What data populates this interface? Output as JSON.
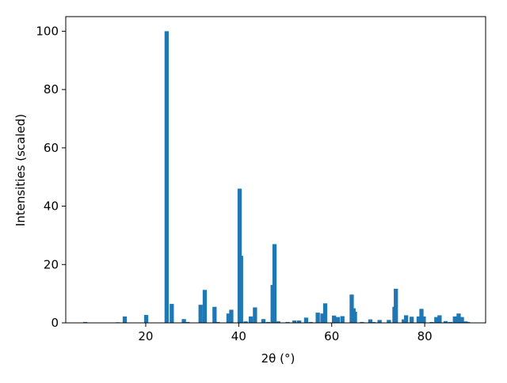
{
  "chart_data": {
    "type": "bar",
    "xlabel": "2θ (°)",
    "ylabel": "Intensities (scaled)",
    "color": "#1f77b4",
    "x": [
      7.0,
      14.0,
      15.5,
      20.1,
      24.5,
      25.6,
      28.2,
      29.0,
      31.8,
      32.7,
      34.8,
      35.5,
      37.8,
      38.4,
      40.2,
      40.5,
      41.5,
      42.6,
      43.5,
      45.3,
      46.3,
      47.3,
      47.7,
      48.5,
      50.5,
      52.0,
      53.0,
      54.5,
      55.5,
      57.0,
      58.0,
      58.6,
      60.5,
      61.3,
      62.3,
      64.3,
      64.7,
      65.0,
      66.5,
      68.3,
      69.0,
      70.3,
      72.3,
      73.5,
      73.8,
      75.5,
      76.0,
      77.2,
      78.7,
      79.3,
      79.8,
      81.5,
      82.5,
      83.2,
      84.5,
      85.5,
      86.5,
      87.3,
      88.0,
      88.8,
      89.3
    ],
    "values": [
      0.3,
      0.2,
      2.2,
      2.7,
      100,
      6.5,
      1.3,
      0.3,
      6.2,
      11.3,
      5.5,
      0.3,
      3.2,
      4.5,
      46,
      23,
      0.5,
      2.2,
      5.3,
      1.3,
      0.3,
      13,
      27,
      0.5,
      0.3,
      0.8,
      0.8,
      1.8,
      0.3,
      3.5,
      3.2,
      6.7,
      2.5,
      2.0,
      2.3,
      9.7,
      5,
      3.8,
      0.3,
      1.2,
      0.3,
      1.0,
      1.0,
      5.5,
      11.7,
      1.2,
      2.6,
      2.1,
      2.2,
      4.8,
      2.2,
      0.3,
      2,
      2.6,
      0.6,
      0.3,
      2.2,
      3.2,
      2,
      0.5,
      0.3
    ],
    "xlim": [
      2.8,
      93.1
    ],
    "ylim": [
      0,
      105
    ],
    "xticks": [
      20,
      40,
      60,
      80
    ],
    "yticks": [
      0,
      20,
      40,
      60,
      80,
      100
    ]
  }
}
